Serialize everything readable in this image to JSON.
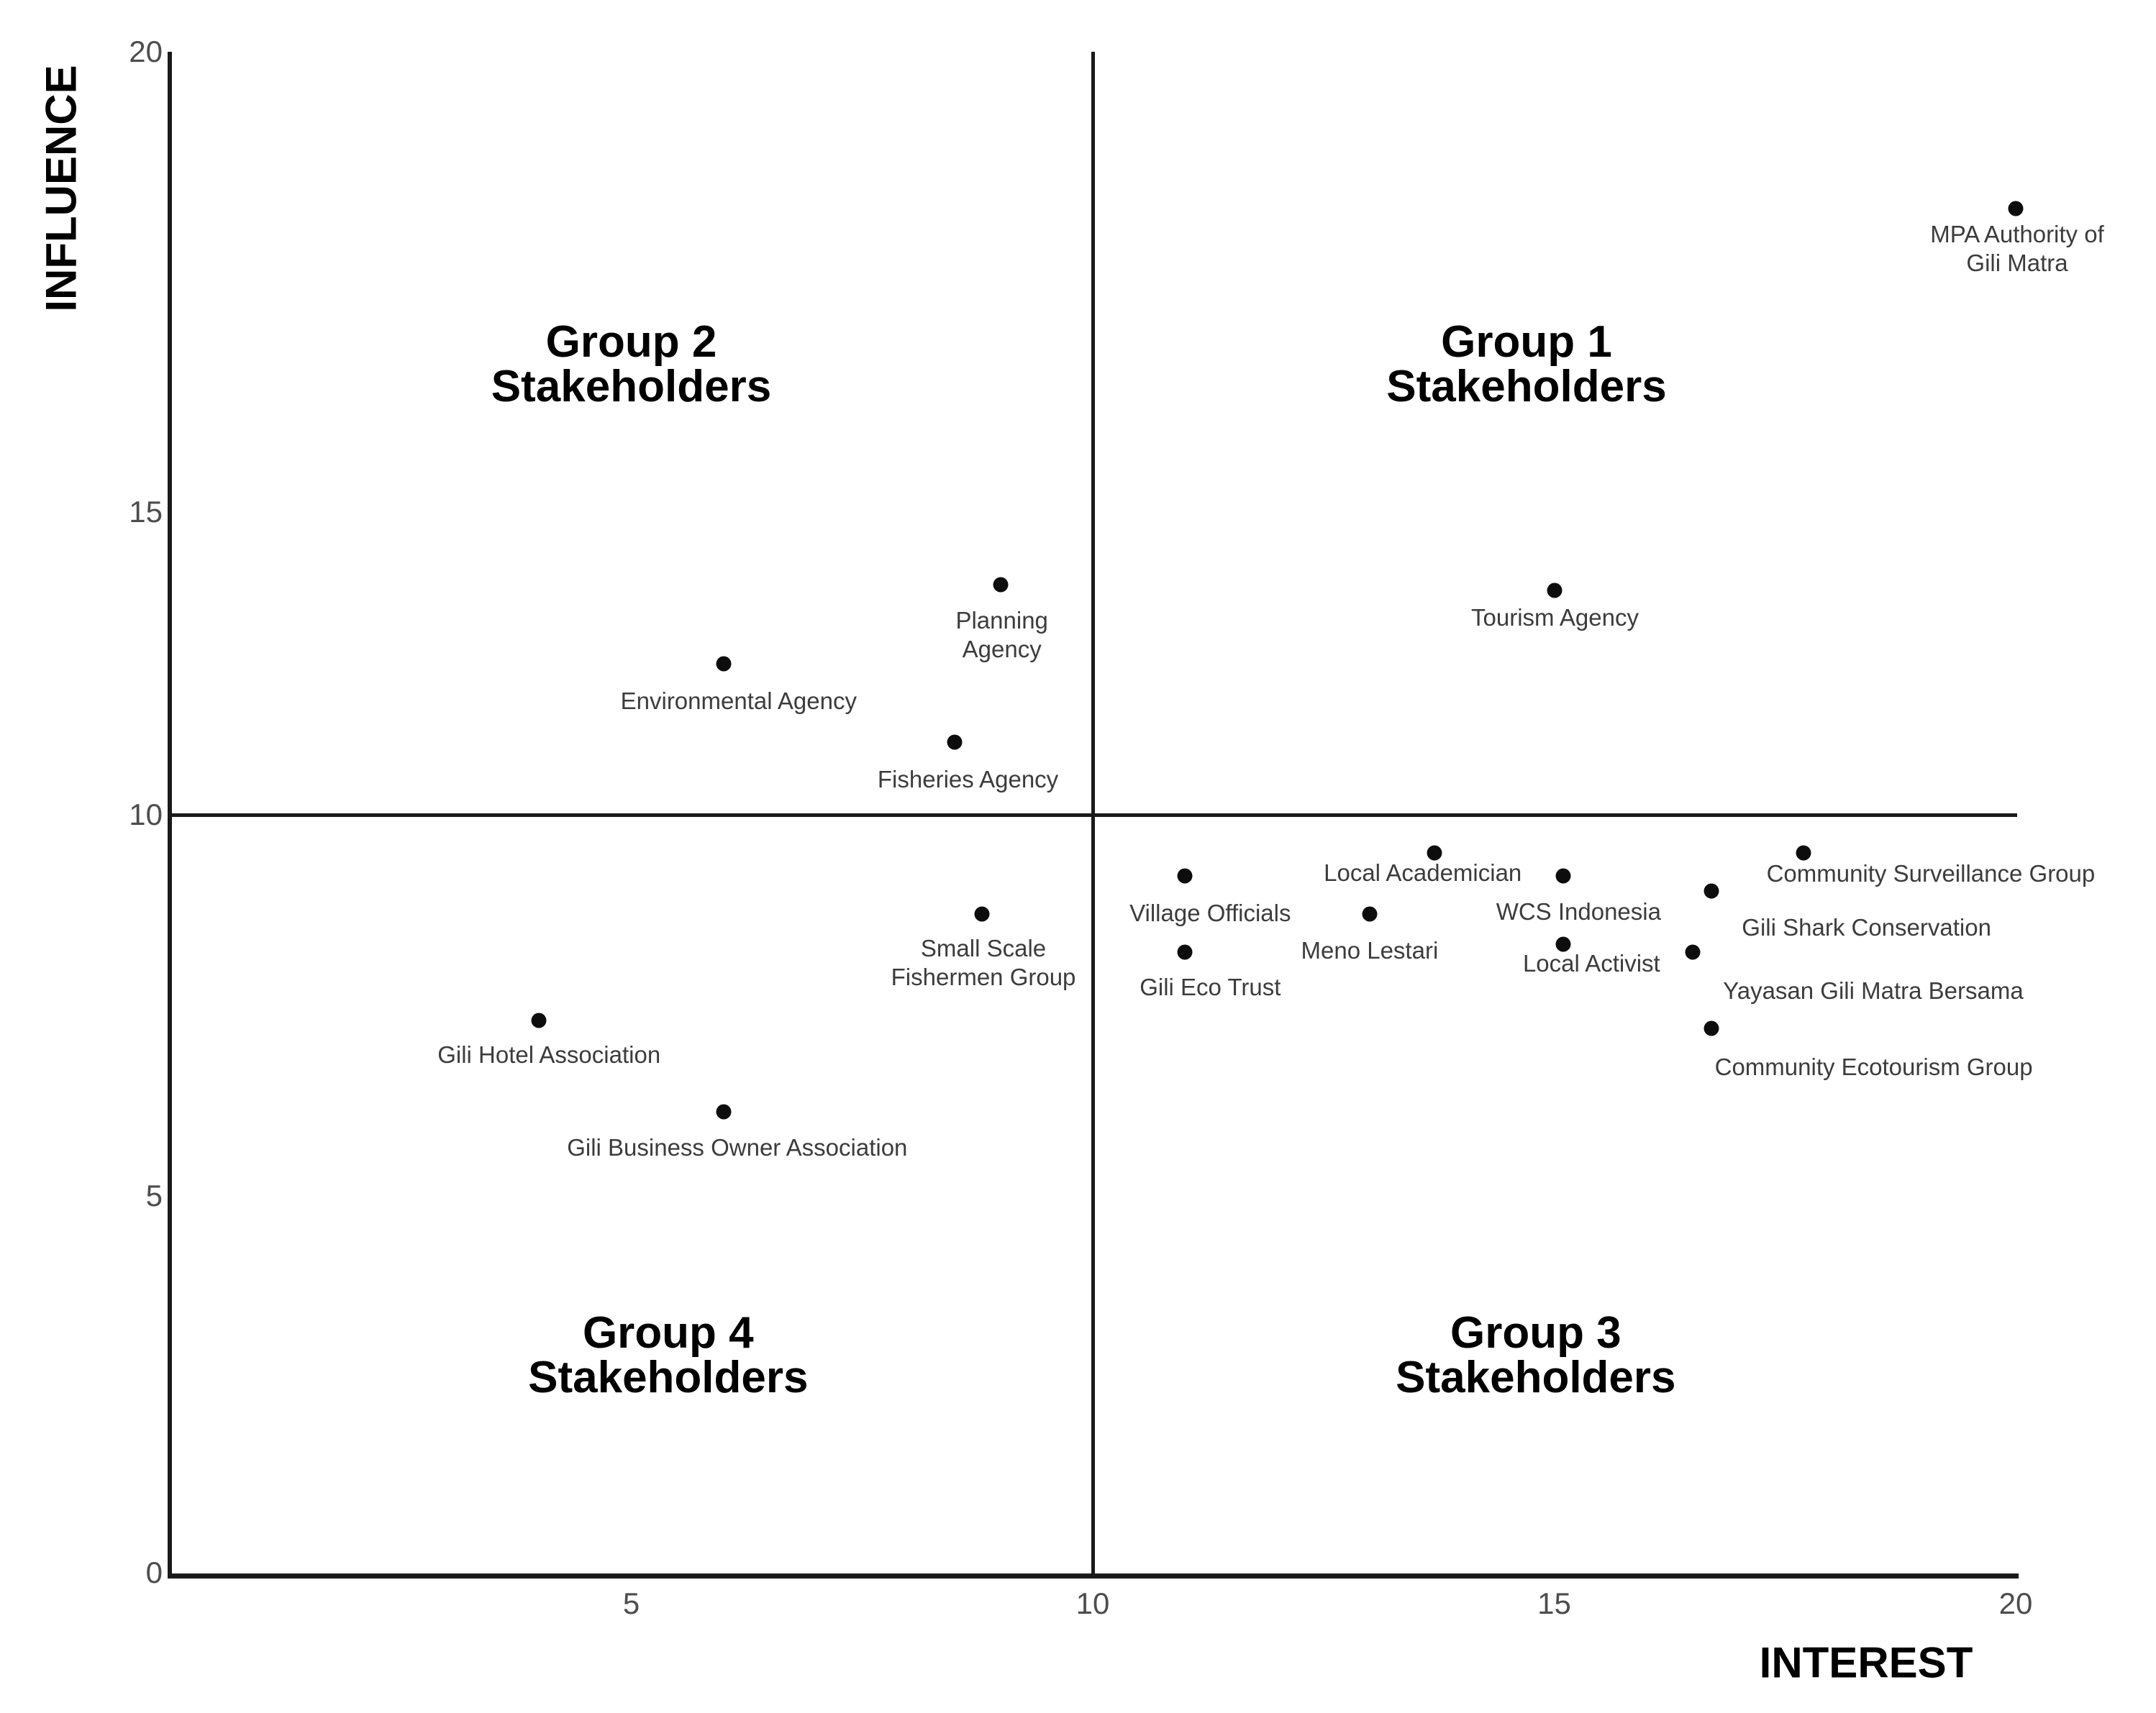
{
  "figure": {
    "background": "#ffffff",
    "axis_color": "#1a1a1a",
    "point_color": "#0d0d0d",
    "point_label_color": "#3c3c3c",
    "tick_label_color": "#4d4d4d",
    "title_color": "#000000"
  },
  "chart_data": {
    "type": "scatter",
    "title": "",
    "xlabel": "INTEREST",
    "ylabel": "INFLUENCE",
    "xlim": [
      0,
      20
    ],
    "ylim": [
      0,
      20
    ],
    "grid": false,
    "legend": "none",
    "x_ticks": [
      5,
      10,
      15,
      20
    ],
    "y_ticks": [
      0,
      5,
      10,
      15,
      20
    ],
    "quadrant_lines": {
      "x": 10,
      "y": 10
    },
    "quadrant_labels": [
      {
        "lines": [
          "Group 1",
          "Stakeholders"
        ],
        "interest": 14.7,
        "influence": 16.6
      },
      {
        "lines": [
          "Group 2",
          "Stakeholders"
        ],
        "interest": 5.0,
        "influence": 16.6
      },
      {
        "lines": [
          "Group 3",
          "Stakeholders"
        ],
        "interest": 14.8,
        "influence": 2.9
      },
      {
        "lines": [
          "Group 4",
          "Stakeholders"
        ],
        "interest": 5.4,
        "influence": 2.9
      }
    ],
    "points": [
      {
        "name": "MPA Authority of Gili Matra",
        "interest": 20.0,
        "influence": 18.3,
        "label_lines": [
          "MPA Authority of",
          "Gili Matra"
        ],
        "label_dx": 2,
        "label_gap": 16
      },
      {
        "name": "Tourism Agency",
        "interest": 15.0,
        "influence": 13.7,
        "label_lines": [
          "Tourism Agency"
        ],
        "label_dx": 1,
        "label_gap": 18
      },
      {
        "name": "Planning Agency",
        "interest": 9.0,
        "influence": 13.8,
        "label_lines": [
          "Planning",
          "Agency"
        ],
        "label_dx": 2,
        "label_gap": 30
      },
      {
        "name": "Environmental Agency",
        "interest": 6.0,
        "influence": 12.5,
        "label_lines": [
          "Environmental Agency"
        ],
        "label_dx": 21,
        "label_gap": 32
      },
      {
        "name": "Fisheries Agency",
        "interest": 8.5,
        "influence": 11.2,
        "label_lines": [
          "Fisheries Agency"
        ],
        "label_dx": 19,
        "label_gap": 32
      },
      {
        "name": "Local Academician",
        "interest": 13.7,
        "influence": 9.5,
        "label_lines": [
          "Local Academician"
        ],
        "label_dx": -16,
        "label_gap": 8
      },
      {
        "name": "Village Officials",
        "interest": 11.0,
        "influence": 9.2,
        "label_lines": [
          "Village Officials"
        ],
        "label_dx": 35,
        "label_gap": 32
      },
      {
        "name": "WCS Indonesia",
        "interest": 15.1,
        "influence": 9.2,
        "label_lines": [
          "WCS Indonesia"
        ],
        "label_dx": 21,
        "label_gap": 30
      },
      {
        "name": "Community Surveillance Group",
        "interest": 17.7,
        "influence": 9.5,
        "label_lines": [
          "Community Surveillance Group"
        ],
        "label_dx": 177,
        "label_gap": 9
      },
      {
        "name": "Gili Shark Conservation",
        "interest": 16.7,
        "influence": 9.0,
        "label_lines": [
          "Gili Shark Conservation"
        ],
        "label_dx": 216,
        "label_gap": 31
      },
      {
        "name": "Meno Lestari",
        "interest": 13.0,
        "influence": 8.7,
        "label_lines": [
          "Meno Lestari"
        ],
        "label_dx": 0,
        "label_gap": 31
      },
      {
        "name": "Local Activist",
        "interest": 15.1,
        "influence": 8.3,
        "label_lines": [
          "Local Activist"
        ],
        "label_dx": 39,
        "label_gap": 7
      },
      {
        "name": "Gili Eco Trust",
        "interest": 11.0,
        "influence": 8.2,
        "label_lines": [
          "Gili Eco Trust"
        ],
        "label_dx": 35,
        "label_gap": 29
      },
      {
        "name": "Yayasan Gili Matra Bersama",
        "interest": 16.5,
        "influence": 8.2,
        "label_lines": [
          "Yayasan Gili Matra Bersama"
        ],
        "label_dx": 251,
        "label_gap": 34
      },
      {
        "name": "Community Ecotourism Group",
        "interest": 16.7,
        "influence": 7.2,
        "label_lines": [
          "Community Ecotourism Group"
        ],
        "label_dx": 226,
        "label_gap": 34
      },
      {
        "name": "Small Scale Fishermen Group",
        "interest": 8.8,
        "influence": 8.7,
        "label_lines": [
          "Small Scale",
          "Fishermen Group"
        ],
        "label_dx": 2,
        "label_gap": 28
      },
      {
        "name": "Gili Hotel Association",
        "interest": 4.0,
        "influence": 7.3,
        "label_lines": [
          "Gili Hotel Association"
        ],
        "label_dx": 14,
        "label_gap": 28
      },
      {
        "name": "Gili Business Owner Association",
        "interest": 6.0,
        "influence": 6.1,
        "label_lines": [
          "Gili Business Owner Association"
        ],
        "label_dx": 19,
        "label_gap": 30
      }
    ]
  }
}
